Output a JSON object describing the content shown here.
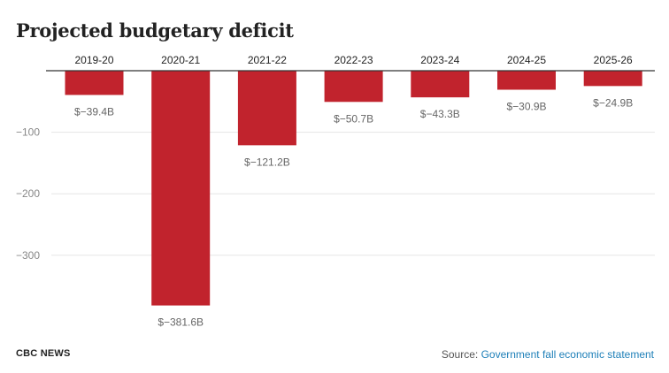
{
  "title": "Projected budgetary deficit",
  "footer": {
    "brand": "CBC NEWS",
    "source_prefix": "Source:",
    "source_link": "Government fall economic statement"
  },
  "colors": {
    "bar": "#c1232d",
    "grid": "#e5e5e5",
    "axis": "#333333",
    "tick_text": "#888888",
    "label_text": "#666666",
    "link": "#1d7fb8"
  },
  "chart_data": {
    "type": "bar",
    "title": "Projected budgetary deficit",
    "categories": [
      "2019-20",
      "2020-21",
      "2021-22",
      "2022-23",
      "2023-24",
      "2024-25",
      "2025-26"
    ],
    "values": [
      -39.4,
      -381.6,
      -121.2,
      -50.7,
      -43.3,
      -30.9,
      -24.9
    ],
    "data_labels": [
      "$−39.4B",
      "$−381.6B",
      "$−121.2B",
      "$−50.7B",
      "$−43.3B",
      "$−30.9B",
      "$−24.9B"
    ],
    "yticks": [
      -100,
      -200,
      -300
    ],
    "ytick_labels": [
      "−100",
      "−200",
      "−300"
    ],
    "ylim": [
      -400,
      0
    ],
    "xlabel": "",
    "ylabel": "",
    "grid": true,
    "category_axis_position": "top"
  }
}
